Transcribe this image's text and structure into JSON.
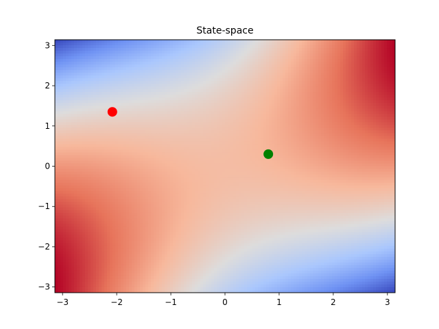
{
  "chart_data": {
    "type": "heatmap",
    "title": "State-space",
    "xlabel": "",
    "ylabel": "",
    "xlim": [
      -3.1416,
      3.1416
    ],
    "ylim": [
      -3.1416,
      3.1416
    ],
    "x_ticks": [
      -3,
      -2,
      -1,
      0,
      1,
      2,
      3
    ],
    "y_ticks": [
      -3,
      -2,
      -1,
      0,
      1,
      2,
      3
    ],
    "colormap": "coolwarm",
    "colormap_stops": [
      "#3b4cc0",
      "#6f92f3",
      "#aac7fd",
      "#dddcdc",
      "#f7b89c",
      "#e7745b",
      "#b40426"
    ],
    "grid": false,
    "points": [
      {
        "x": -2.08,
        "y": 1.35,
        "color": "#ff0000"
      },
      {
        "x": 0.8,
        "y": 0.3,
        "color": "#008000"
      }
    ]
  }
}
